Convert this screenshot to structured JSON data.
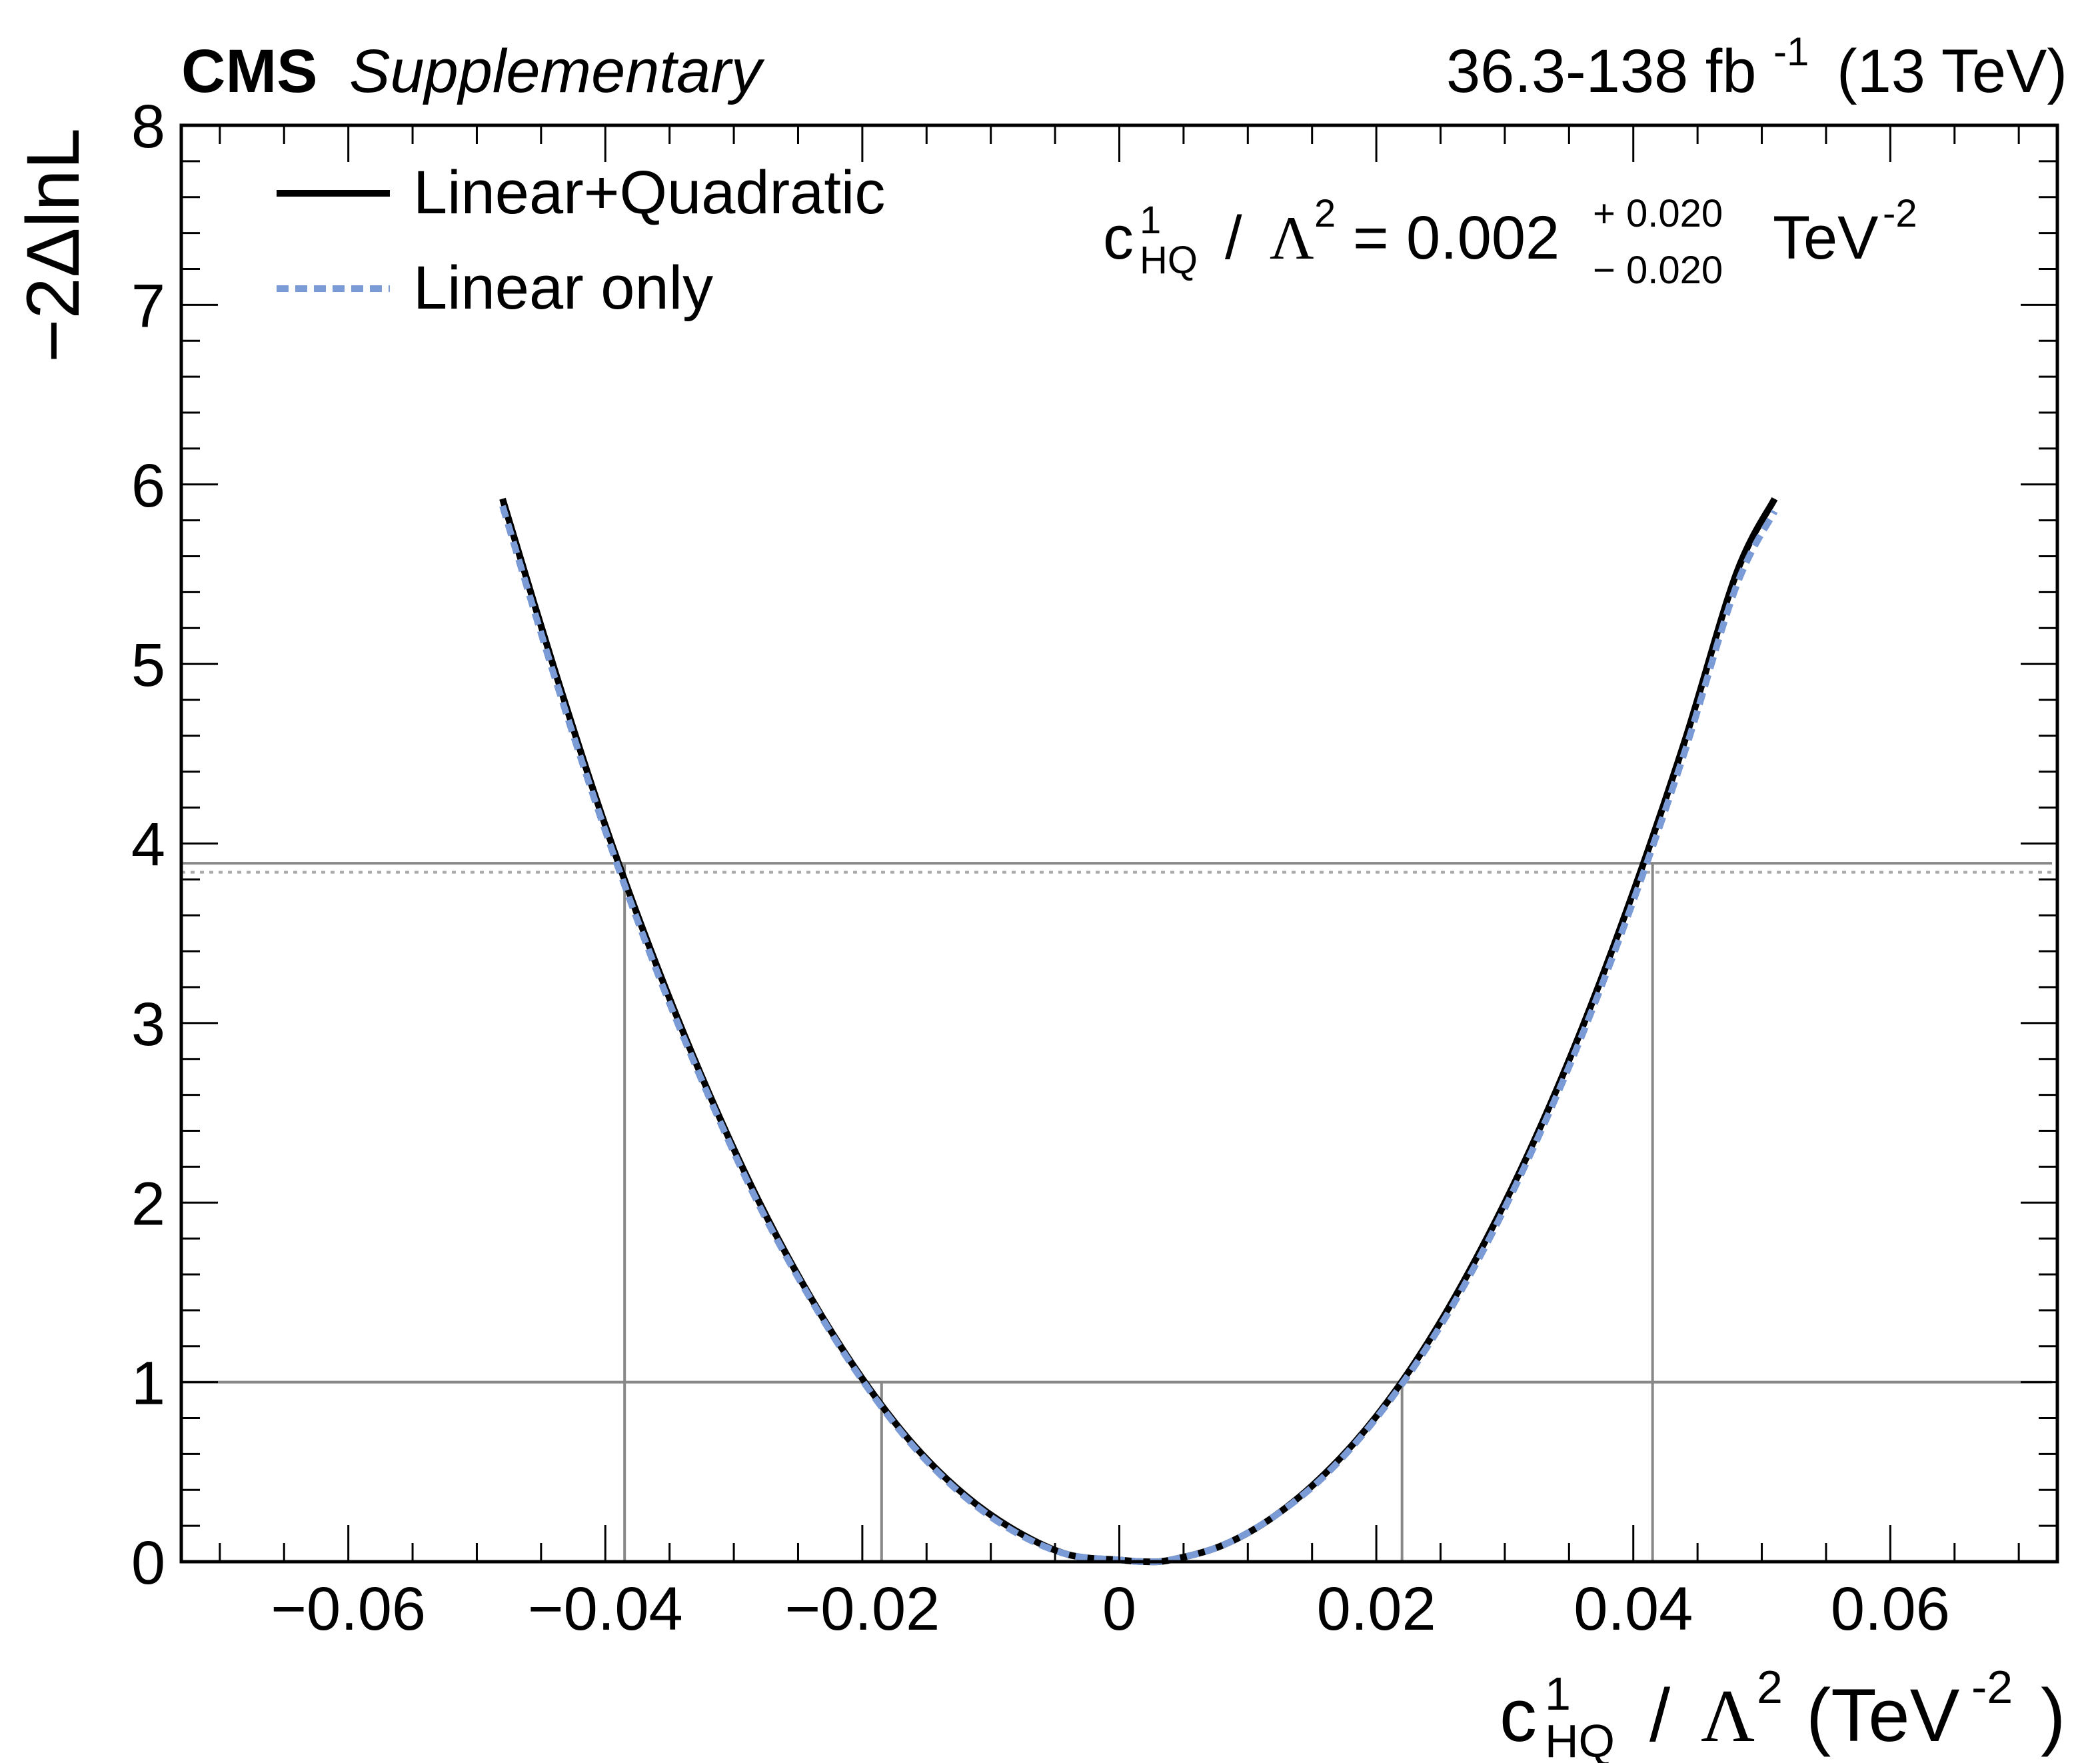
{
  "header": {
    "experiment": "CMS",
    "status": "Supplementary",
    "lumi_value": "36.3-138 fb",
    "lumi_exp": "-1",
    "energy": "(13 TeV)"
  },
  "annotation": {
    "coef_base": "c",
    "coef_sup": "1",
    "coef_sub": "HQ",
    "slash": "/",
    "lambda": "Λ",
    "lambda_exp": "2",
    "equals": "=",
    "value": "0.002",
    "err_plus": "+ 0.020",
    "err_minus": "− 0.020",
    "unit": "TeV",
    "unit_exp": "-2"
  },
  "chart_data": {
    "type": "line",
    "xlabel": {
      "base": "c",
      "sup": "1",
      "sub": "HQ",
      "slash": "/",
      "lambda": "Λ",
      "lambda_exp": "2",
      "open": "(TeV",
      "unit_exp": "-2",
      "close": ")"
    },
    "ylabel": "−2ΔlnL",
    "xlim": [
      -0.073,
      0.073
    ],
    "ylim": [
      0,
      8
    ],
    "x_ticks": [
      -0.06,
      -0.04,
      -0.02,
      0,
      0.02,
      0.04,
      0.06
    ],
    "x_tick_labels": [
      "−0.06",
      "−0.04",
      "−0.02",
      "0",
      "0.02",
      "0.04",
      "0.06"
    ],
    "y_ticks": [
      0,
      1,
      2,
      3,
      4,
      5,
      6,
      7,
      8
    ],
    "y_tick_labels": [
      "0",
      "1",
      "2",
      "3",
      "4",
      "5",
      "6",
      "7",
      "8"
    ],
    "legend_position": "top-left",
    "best_fit": 0.002,
    "series": [
      {
        "name": "Linear+Quadratic",
        "color": "#000000",
        "style": "solid",
        "x": [
          -0.048,
          -0.044,
          -0.04,
          -0.036,
          -0.032,
          -0.028,
          -0.024,
          -0.02,
          -0.016,
          -0.012,
          -0.008,
          -0.004,
          0.0,
          0.002,
          0.004,
          0.008,
          0.012,
          0.016,
          0.02,
          0.024,
          0.028,
          0.032,
          0.036,
          0.04,
          0.044,
          0.048,
          0.051
        ],
        "y": [
          5.92,
          4.98,
          4.1,
          3.32,
          2.62,
          2.0,
          1.47,
          1.02,
          0.65,
          0.37,
          0.17,
          0.04,
          0.01,
          0.0,
          0.01,
          0.09,
          0.25,
          0.49,
          0.81,
          1.22,
          1.72,
          2.3,
          2.97,
          3.73,
          4.57,
          5.5,
          5.92
        ]
      },
      {
        "name": "Linear only",
        "color": "#7b9bd6",
        "style": "dashed",
        "x": [
          -0.048,
          -0.044,
          -0.04,
          -0.036,
          -0.032,
          -0.028,
          -0.024,
          -0.02,
          -0.016,
          -0.012,
          -0.008,
          -0.004,
          0.0,
          0.002,
          0.004,
          0.008,
          0.012,
          0.016,
          0.02,
          0.024,
          0.028,
          0.032,
          0.036,
          0.04,
          0.044,
          0.048,
          0.051
        ],
        "y": [
          5.88,
          4.94,
          4.07,
          3.29,
          2.6,
          1.98,
          1.46,
          1.01,
          0.64,
          0.36,
          0.16,
          0.04,
          0.01,
          0.0,
          0.01,
          0.09,
          0.25,
          0.48,
          0.8,
          1.2,
          1.69,
          2.27,
          2.93,
          3.68,
          4.51,
          5.43,
          5.85
        ]
      }
    ],
    "reference_lines": [
      {
        "y": 1.0,
        "color": "#888888",
        "style": "solid"
      },
      {
        "y": 3.89,
        "color": "#888888",
        "style": "solid"
      },
      {
        "y": 3.84,
        "color": "#aaaaaa",
        "style": "dotted"
      }
    ],
    "interval_lines": [
      {
        "x": -0.0385,
        "y": 3.89
      },
      {
        "x": -0.0185,
        "y": 1.0
      },
      {
        "x": 0.022,
        "y": 1.0
      },
      {
        "x": 0.0415,
        "y": 3.89
      }
    ]
  }
}
